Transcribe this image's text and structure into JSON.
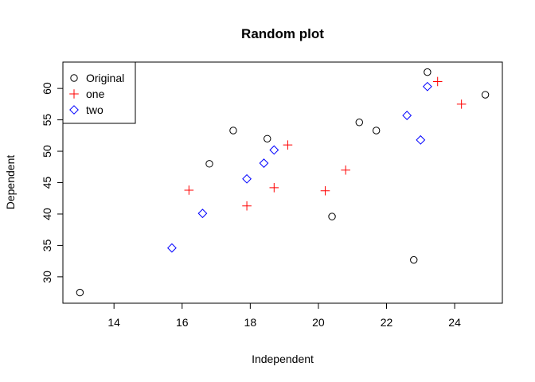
{
  "chart_data": {
    "type": "scatter",
    "title": "Random plot",
    "xlabel": "Independent",
    "ylabel": "Dependent",
    "xlim": [
      12.5,
      25.4
    ],
    "ylim": [
      25.8,
      64.2
    ],
    "xticks": [
      14,
      16,
      18,
      20,
      22,
      24
    ],
    "yticks": [
      30,
      35,
      40,
      45,
      50,
      55,
      60
    ],
    "grid": false,
    "legend": "top-left",
    "series": [
      {
        "name": "Original",
        "marker": "circle",
        "color": "#000000",
        "points": [
          [
            13.0,
            27.5
          ],
          [
            16.8,
            48.0
          ],
          [
            17.5,
            53.3
          ],
          [
            18.5,
            52.0
          ],
          [
            20.4,
            39.6
          ],
          [
            21.2,
            54.6
          ],
          [
            21.7,
            53.3
          ],
          [
            22.8,
            32.7
          ],
          [
            23.2,
            62.6
          ],
          [
            24.9,
            59.0
          ]
        ]
      },
      {
        "name": "one",
        "marker": "plus",
        "color": "#ff0000",
        "points": [
          [
            16.2,
            43.8
          ],
          [
            17.9,
            41.3
          ],
          [
            18.7,
            44.2
          ],
          [
            19.1,
            51.0
          ],
          [
            20.2,
            43.7
          ],
          [
            20.8,
            47.0
          ],
          [
            23.5,
            61.1
          ],
          [
            24.2,
            57.5
          ]
        ]
      },
      {
        "name": "two",
        "marker": "diamond",
        "color": "#0000ff",
        "points": [
          [
            15.7,
            34.6
          ],
          [
            16.6,
            40.1
          ],
          [
            17.9,
            45.6
          ],
          [
            18.4,
            48.1
          ],
          [
            18.7,
            50.2
          ],
          [
            22.6,
            55.7
          ],
          [
            23.0,
            51.8
          ],
          [
            23.2,
            60.3
          ]
        ]
      }
    ]
  }
}
